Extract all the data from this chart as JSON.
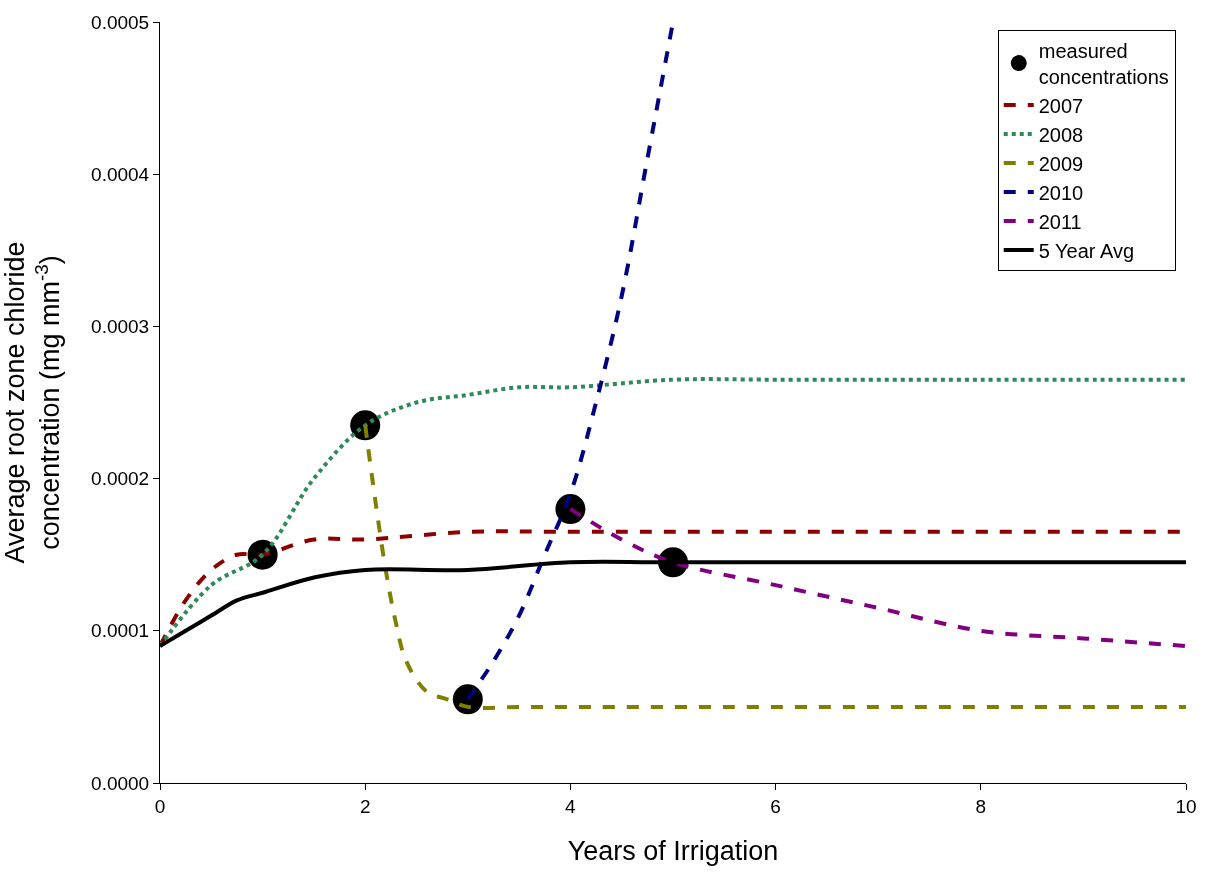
{
  "chart_data": {
    "type": "line",
    "xlabel": "Years of Irrigation",
    "ylabel": "Average root zone chloride\nconcentration (mg mm$^{-3}$)",
    "xlim": [
      0,
      10
    ],
    "xticks": [
      0,
      2,
      4,
      6,
      8,
      10
    ],
    "ylim": [
      0,
      0.0005
    ],
    "yticks": [
      {
        "value": 0,
        "label": "0.0000"
      },
      {
        "value": 0.0001,
        "label": "0.0001"
      },
      {
        "value": 0.0002,
        "label": "0.0002"
      },
      {
        "value": 0.0003,
        "label": "0.0003"
      },
      {
        "value": 0.0004,
        "label": "0.0004"
      },
      {
        "value": 0.0005,
        "label": "0.0005"
      }
    ],
    "grid": false,
    "legend": "top right",
    "series": [
      {
        "name": "2007",
        "color": "#8b0000",
        "line_style": "dashed",
        "x": [
          0,
          0.25,
          0.5,
          0.75,
          1,
          1.5,
          2,
          3,
          4,
          6,
          10
        ],
        "values": [
          9e-05,
          0.00012,
          0.00014,
          0.00015,
          0.00015,
          0.00016,
          0.00016,
          0.000165,
          0.000165,
          0.000165,
          0.000165
        ]
      },
      {
        "name": "2008",
        "color": "#2e8b57",
        "line_style": "dotted",
        "x": [
          0,
          0.5,
          1,
          1.5,
          2,
          2.5,
          3,
          3.5,
          4,
          5,
          6,
          8,
          10
        ],
        "values": [
          9e-05,
          0.00013,
          0.00015,
          0.0002,
          0.000235,
          0.00025,
          0.000255,
          0.00026,
          0.00026,
          0.000265,
          0.000265,
          0.000265,
          0.000265
        ]
      },
      {
        "name": "2009",
        "color": "#808000",
        "line_style": "dashed",
        "x": [
          2,
          2.1,
          2.2,
          2.3,
          2.4,
          2.6,
          2.8,
          3,
          3.5,
          4,
          6,
          10
        ],
        "values": [
          0.000235,
          0.000185,
          0.00014,
          0.000105,
          8e-05,
          6e-05,
          5.5e-05,
          5e-05,
          5e-05,
          5e-05,
          5e-05,
          5e-05
        ]
      },
      {
        "name": "2010",
        "color": "#000080",
        "line_style": "dashed",
        "x": [
          3,
          3.25,
          3.5,
          3.75,
          4,
          4.25,
          4.5,
          4.75,
          5
        ],
        "values": [
          5.5e-05,
          8e-05,
          0.00011,
          0.00015,
          0.00019,
          0.00025,
          0.00032,
          0.00041,
          0.0005
        ]
      },
      {
        "name": "2011",
        "color": "#800080",
        "line_style": "dashed",
        "x": [
          4,
          4.5,
          5,
          6,
          7,
          8,
          9,
          10
        ],
        "values": [
          0.00018,
          0.00016,
          0.000145,
          0.00013,
          0.000115,
          0.0001,
          9.5e-05,
          9e-05
        ]
      },
      {
        "name": "5 Year Avg",
        "color": "#000000",
        "line_style": "solid",
        "x": [
          0,
          0.25,
          0.5,
          0.75,
          1,
          1.5,
          2,
          3,
          4,
          5,
          10
        ],
        "values": [
          9e-05,
          0.0001,
          0.00011,
          0.00012,
          0.000125,
          0.000135,
          0.00014,
          0.00014,
          0.000145,
          0.000145,
          0.000145
        ]
      },
      {
        "name": "measured\nconcentrations",
        "type": "scatter",
        "marker": "circle",
        "color": "#000000",
        "x": [
          1,
          2,
          3,
          4,
          5
        ],
        "values": [
          0.00015,
          0.000235,
          5.5e-05,
          0.00018,
          0.000145
        ]
      }
    ]
  }
}
